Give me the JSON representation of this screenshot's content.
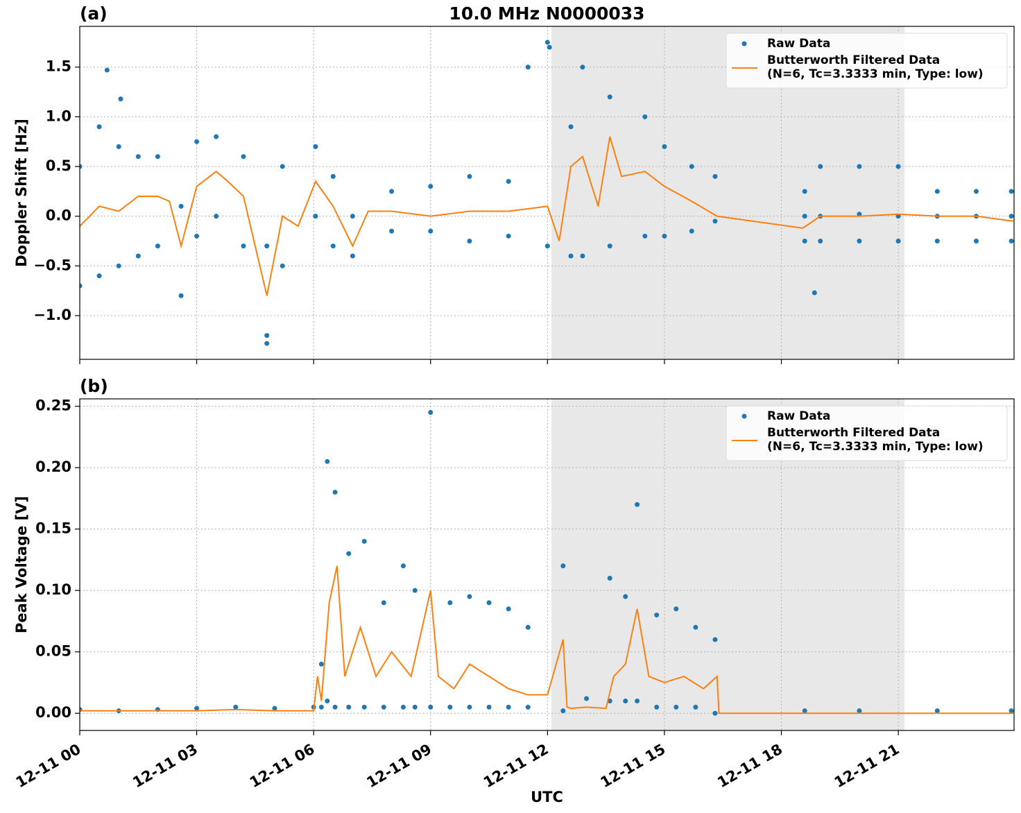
{
  "chart_data": [
    {
      "type": "line",
      "label": "(a)",
      "title": "10.0 MHz N0000033",
      "ylabel": "Doppler Shift [Hz]",
      "xlim": [
        0,
        23.97
      ],
      "xticks": [
        0,
        3,
        6,
        9,
        12,
        15,
        18,
        21
      ],
      "show_xticklabels": false,
      "ylim": [
        -1.44,
        1.91
      ],
      "yticks": [
        {
          "value": -1,
          "label": "−1.0"
        },
        {
          "value": -0.5,
          "label": "−0.5"
        },
        {
          "value": 0,
          "label": "0.0"
        },
        0.5,
        {
          "value": 1,
          "label": "1.0"
        },
        1.5
      ],
      "grid": true,
      "legend": "upper right",
      "highlight": [
        12.1,
        21.16
      ],
      "highlight_color": "#e8e8e8",
      "series": [
        {
          "name": [
            "Raw Data"
          ],
          "style": "points",
          "color": "#1f77b4",
          "x": [
            0,
            0,
            0.5,
            0.5,
            1,
            1,
            1.5,
            1.5,
            2,
            2,
            2.6,
            2.6,
            3,
            3,
            3.5,
            3.5,
            4.2,
            4.2,
            4.8,
            4.8,
            5.2,
            5.2,
            6.05,
            6.05,
            6.5,
            6.5,
            7,
            7,
            8,
            8,
            9,
            9,
            10,
            10,
            11,
            11,
            11.5,
            12,
            12,
            12.6,
            12.6,
            12.9,
            12.9,
            13.6,
            13.6,
            14.5,
            14.5,
            15,
            15,
            15.7,
            15.7,
            16.3,
            16.3,
            18.6,
            18.6,
            18.6,
            19,
            19,
            19,
            20,
            20,
            20,
            21,
            21,
            21,
            22,
            22,
            22,
            23,
            23,
            23,
            23.9,
            23.9,
            23.9,
            0.7,
            1.05,
            4.8,
            12.05,
            18.85
          ],
          "values": [
            0.5,
            -0.7,
            0.9,
            -0.6,
            0.7,
            -0.5,
            0.6,
            -0.4,
            0.6,
            -0.3,
            0.1,
            -0.8,
            0.75,
            -0.2,
            0.8,
            0.0,
            0.6,
            -0.3,
            -0.3,
            -1.2,
            0.5,
            -0.5,
            0.7,
            0.0,
            0.4,
            -0.3,
            0.0,
            -0.4,
            0.25,
            -0.15,
            0.3,
            -0.15,
            0.4,
            -0.25,
            0.35,
            -0.2,
            1.5,
            1.75,
            -0.3,
            0.9,
            -0.4,
            1.5,
            -0.4,
            1.2,
            -0.3,
            1.0,
            -0.2,
            0.7,
            -0.2,
            0.5,
            -0.15,
            0.4,
            -0.05,
            0.25,
            0.0,
            -0.25,
            0.5,
            0.0,
            -0.25,
            0.5,
            0.02,
            -0.25,
            0.5,
            0.0,
            -0.25,
            0.25,
            0.0,
            -0.25,
            0.25,
            0.0,
            -0.25,
            0.25,
            0.0,
            -0.25,
            1.47,
            1.18,
            -1.28,
            1.7,
            -0.77
          ]
        },
        {
          "name": [
            "Butterworth Filtered Data",
            "(N=6, Tc=3.3333 min, Type: low)"
          ],
          "style": "line",
          "color": "#ff7f0e",
          "x": [
            0,
            0.5,
            1,
            1.5,
            2,
            2.3,
            2.6,
            3,
            3.5,
            3.8,
            4.2,
            4.8,
            5.2,
            5.6,
            6.05,
            6.5,
            7,
            7.4,
            8,
            9,
            10,
            11,
            12,
            12.3,
            12.6,
            12.9,
            13.3,
            13.6,
            13.9,
            14.5,
            15,
            15.7,
            16.35,
            18.55,
            19,
            20,
            21,
            22,
            23,
            23.95
          ],
          "values": [
            -0.1,
            0.1,
            0.05,
            0.2,
            0.2,
            0.15,
            -0.3,
            0.3,
            0.45,
            0.35,
            0.2,
            -0.8,
            0.0,
            -0.1,
            0.35,
            0.1,
            -0.3,
            0.05,
            0.05,
            0.0,
            0.05,
            0.05,
            0.1,
            -0.25,
            0.5,
            0.6,
            0.1,
            0.8,
            0.4,
            0.45,
            0.3,
            0.15,
            0.0,
            -0.12,
            0.0,
            0.0,
            0.02,
            0.0,
            0.0,
            -0.05
          ]
        }
      ]
    },
    {
      "type": "line",
      "label": "(b)",
      "ylabel": "Peak Voltage [V]",
      "xlabel": "UTC",
      "xlim": [
        0,
        23.97
      ],
      "xticks": [
        {
          "value": 0,
          "label": "12-11 00"
        },
        {
          "value": 3,
          "label": "12-11 03"
        },
        {
          "value": 6,
          "label": "12-11 06"
        },
        {
          "value": 9,
          "label": "12-11 09"
        },
        {
          "value": 12,
          "label": "12-11 12"
        },
        {
          "value": 15,
          "label": "12-11 15"
        },
        {
          "value": 18,
          "label": "12-11 18"
        },
        {
          "value": 21,
          "label": "12-11 21"
        }
      ],
      "show_xticklabels": true,
      "ylim": [
        -0.014,
        0.256
      ],
      "yticks": [
        {
          "value": 0,
          "label": "0.00"
        },
        {
          "value": 0.05,
          "label": "0.05"
        },
        {
          "value": 0.1,
          "label": "0.10"
        },
        {
          "value": 0.15,
          "label": "0.15"
        },
        {
          "value": 0.2,
          "label": "0.20"
        },
        {
          "value": 0.25,
          "label": "0.25"
        }
      ],
      "grid": true,
      "legend": "upper right",
      "highlight": [
        12.1,
        21.16
      ],
      "highlight_color": "#e8e8e8",
      "series": [
        {
          "name": [
            "Raw Data"
          ],
          "style": "points",
          "color": "#1f77b4",
          "x": [
            0,
            1,
            2,
            3,
            4,
            5,
            6,
            6.2,
            6.2,
            6.35,
            6.35,
            6.55,
            6.55,
            6.9,
            6.9,
            7.3,
            7.3,
            7.8,
            7.8,
            8.3,
            8.3,
            8.6,
            8.6,
            9,
            9,
            9.5,
            9.5,
            10,
            10,
            10.5,
            10.5,
            11,
            11,
            11.5,
            11.5,
            12.4,
            12.4,
            13,
            13.6,
            13.6,
            14,
            14,
            14.3,
            14.3,
            14.8,
            14.8,
            15.3,
            15.3,
            15.8,
            15.8,
            16.3,
            16.3,
            18.6,
            20,
            22,
            23.9
          ],
          "values": [
            0.003,
            0.002,
            0.003,
            0.004,
            0.005,
            0.004,
            0.005,
            0.04,
            0.005,
            0.205,
            0.01,
            0.18,
            0.005,
            0.13,
            0.005,
            0.14,
            0.005,
            0.09,
            0.005,
            0.12,
            0.005,
            0.1,
            0.005,
            0.245,
            0.005,
            0.09,
            0.005,
            0.095,
            0.005,
            0.09,
            0.005,
            0.085,
            0.005,
            0.07,
            0.005,
            0.12,
            0.002,
            0.012,
            0.11,
            0.01,
            0.095,
            0.01,
            0.17,
            0.01,
            0.08,
            0.005,
            0.085,
            0.005,
            0.07,
            0.005,
            0.06,
            0.0,
            0.002,
            0.002,
            0.002,
            0.002
          ]
        },
        {
          "name": [
            "Butterworth Filtered Data",
            "(N=6, Tc=3.3333 min, Type: low)"
          ],
          "style": "line",
          "color": "#ff7f0e",
          "x": [
            0,
            3,
            4,
            5,
            6,
            6.1,
            6.2,
            6.4,
            6.6,
            6.8,
            7.2,
            7.6,
            8,
            8.5,
            9,
            9.2,
            9.6,
            10,
            11,
            11.5,
            12,
            12.4,
            12.5,
            12.6,
            13,
            13.5,
            13.7,
            14,
            14.3,
            14.6,
            15,
            15.5,
            16,
            16.35,
            16.4,
            18.55,
            23.95
          ],
          "values": [
            0.002,
            0.002,
            0.003,
            0.002,
            0.002,
            0.03,
            0.01,
            0.09,
            0.12,
            0.03,
            0.07,
            0.03,
            0.05,
            0.03,
            0.1,
            0.03,
            0.02,
            0.04,
            0.02,
            0.015,
            0.015,
            0.06,
            0.005,
            0.004,
            0.005,
            0.004,
            0.03,
            0.04,
            0.085,
            0.03,
            0.025,
            0.03,
            0.02,
            0.03,
            0.0,
            0.0,
            0.0
          ]
        }
      ]
    }
  ]
}
